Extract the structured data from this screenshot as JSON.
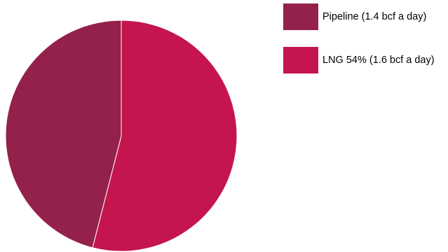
{
  "chart_data": {
    "type": "pie",
    "title": "",
    "categories": [
      "Pipeline (1.4 bcf a day)",
      "LNG 54% (1.6 bcf a day)"
    ],
    "values": [
      46,
      54
    ],
    "colors": [
      "#94214b",
      "#c4154f"
    ],
    "start_angle": "12 o'clock",
    "direction": "clockwise, LNG first",
    "legend": "top-right"
  }
}
